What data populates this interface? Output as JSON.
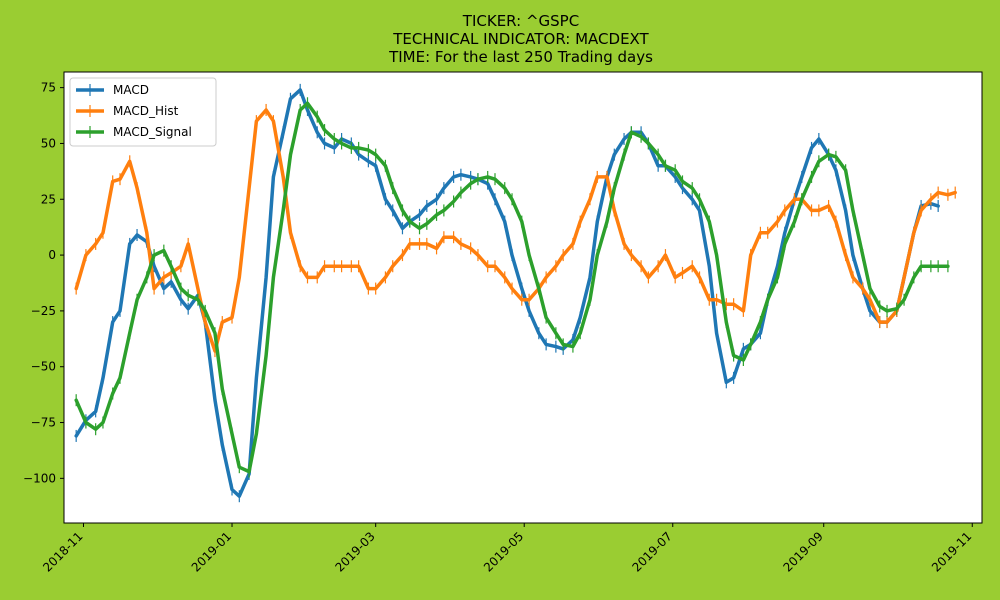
{
  "chart_data": {
    "type": "line",
    "title_lines": [
      "TICKER:  ^GSPC",
      "TECHNICAL INDICATOR:  MACDEXT",
      "TIME: For the last 250 Trading days"
    ],
    "xlabel": "",
    "ylabel": "",
    "xlim": [
      "2018-10-24",
      "2019-11-05"
    ],
    "ylim": [
      -120,
      82
    ],
    "x_ticks": [
      "2018-11-01",
      "2019-01-01",
      "2019-03-01",
      "2019-05-01",
      "2019-07-01",
      "2019-09-01",
      "2019-11-01"
    ],
    "x_tick_labels": [
      "2018-11",
      "2019-01",
      "2019-03",
      "2019-05",
      "2019-07",
      "2019-09",
      "2019-11"
    ],
    "y_ticks": [
      75,
      50,
      25,
      0,
      -25,
      -50,
      -75,
      -100
    ],
    "y_tick_labels": [
      "75",
      "50",
      "25",
      "0",
      "−25",
      "−50",
      "−75",
      "−100"
    ],
    "grid": false,
    "legend_position": "top-left",
    "background": "#9acd32",
    "plot_background": "#ffffff",
    "x_dates": [
      "2018-10-29",
      "2018-11-02",
      "2018-11-06",
      "2018-11-09",
      "2018-11-13",
      "2018-11-16",
      "2018-11-20",
      "2018-11-23",
      "2018-11-27",
      "2018-11-30",
      "2018-12-04",
      "2018-12-07",
      "2018-12-11",
      "2018-12-14",
      "2018-12-18",
      "2018-12-21",
      "2018-12-25",
      "2018-12-28",
      "2019-01-01",
      "2019-01-04",
      "2019-01-08",
      "2019-01-11",
      "2019-01-15",
      "2019-01-18",
      "2019-01-22",
      "2019-01-25",
      "2019-01-29",
      "2019-02-01",
      "2019-02-05",
      "2019-02-08",
      "2019-02-12",
      "2019-02-15",
      "2019-02-19",
      "2019-02-22",
      "2019-02-26",
      "2019-03-01",
      "2019-03-05",
      "2019-03-08",
      "2019-03-12",
      "2019-03-15",
      "2019-03-19",
      "2019-03-22",
      "2019-03-26",
      "2019-03-29",
      "2019-04-02",
      "2019-04-05",
      "2019-04-09",
      "2019-04-12",
      "2019-04-16",
      "2019-04-19",
      "2019-04-23",
      "2019-04-26",
      "2019-04-30",
      "2019-05-03",
      "2019-05-07",
      "2019-05-10",
      "2019-05-14",
      "2019-05-17",
      "2019-05-21",
      "2019-05-24",
      "2019-05-28",
      "2019-05-31",
      "2019-06-04",
      "2019-06-07",
      "2019-06-11",
      "2019-06-14",
      "2019-06-18",
      "2019-06-21",
      "2019-06-25",
      "2019-06-28",
      "2019-07-02",
      "2019-07-05",
      "2019-07-09",
      "2019-07-12",
      "2019-07-16",
      "2019-07-19",
      "2019-07-23",
      "2019-07-26",
      "2019-07-30",
      "2019-08-02",
      "2019-08-06",
      "2019-08-09",
      "2019-08-13",
      "2019-08-16",
      "2019-08-20",
      "2019-08-23",
      "2019-08-27",
      "2019-08-30",
      "2019-09-03",
      "2019-09-06",
      "2019-09-10",
      "2019-09-13",
      "2019-09-17",
      "2019-09-20",
      "2019-09-24",
      "2019-09-27",
      "2019-10-01",
      "2019-10-04",
      "2019-10-08",
      "2019-10-11",
      "2019-10-15",
      "2019-10-18",
      "2019-10-22",
      "2019-10-25"
    ],
    "series": [
      {
        "name": "MACD",
        "color": "#1f77b4",
        "values": [
          -81,
          -74,
          -70,
          -55,
          -30,
          -25,
          5,
          9,
          6,
          -5,
          -15,
          -12,
          -20,
          -24,
          -18,
          -30,
          -65,
          -85,
          -105,
          -108,
          -98,
          -55,
          -10,
          35,
          55,
          70,
          74,
          65,
          55,
          50,
          48,
          52,
          50,
          45,
          42,
          40,
          25,
          20,
          12,
          15,
          18,
          22,
          25,
          30,
          35,
          36,
          35,
          34,
          32,
          25,
          15,
          0,
          -15,
          -25,
          -35,
          -40,
          -41,
          -42,
          -38,
          -28,
          -10,
          15,
          35,
          45,
          52,
          55,
          55,
          50,
          40,
          40,
          35,
          30,
          25,
          20,
          -5,
          -35,
          -57,
          -55,
          -42,
          -40,
          -35,
          -20,
          -5,
          10,
          25,
          35,
          48,
          52,
          45,
          38,
          20,
          0,
          -15,
          -25,
          -30,
          -30,
          -25,
          -10,
          10,
          22,
          23,
          22
        ]
      },
      {
        "name": "MACD_Hist",
        "color": "#ff7f0e",
        "values": [
          -15,
          0,
          5,
          10,
          33,
          34,
          42,
          30,
          10,
          -15,
          -10,
          -8,
          -5,
          5,
          -15,
          -30,
          -43,
          -30,
          -28,
          -10,
          30,
          60,
          65,
          60,
          35,
          10,
          -5,
          -10,
          -10,
          -5,
          -5,
          -5,
          -5,
          -5,
          -15,
          -15,
          -10,
          -5,
          0,
          5,
          5,
          5,
          3,
          8,
          8,
          5,
          3,
          0,
          -5,
          -5,
          -10,
          -15,
          -20,
          -20,
          -15,
          -10,
          -5,
          0,
          5,
          15,
          25,
          35,
          35,
          20,
          5,
          0,
          -5,
          -10,
          -5,
          0,
          -10,
          -8,
          -5,
          -10,
          -20,
          -20,
          -22,
          -22,
          -25,
          0,
          10,
          10,
          15,
          20,
          25,
          25,
          20,
          20,
          22,
          15,
          0,
          -10,
          -15,
          -20,
          -30,
          -30,
          -25,
          -10,
          10,
          20,
          25,
          28,
          27,
          28
        ]
      },
      {
        "name": "MACD_Signal",
        "color": "#2ca02c",
        "values": [
          -65,
          -75,
          -78,
          -75,
          -62,
          -55,
          -35,
          -20,
          -10,
          0,
          2,
          -5,
          -15,
          -18,
          -20,
          -25,
          -35,
          -60,
          -80,
          -95,
          -97,
          -80,
          -45,
          -10,
          20,
          45,
          65,
          68,
          62,
          56,
          52,
          50,
          48,
          48,
          47,
          45,
          40,
          30,
          20,
          15,
          12,
          14,
          18,
          20,
          24,
          28,
          32,
          34,
          35,
          34,
          30,
          25,
          15,
          0,
          -15,
          -28,
          -35,
          -40,
          -41,
          -35,
          -20,
          0,
          15,
          30,
          45,
          55,
          53,
          50,
          45,
          40,
          38,
          33,
          30,
          25,
          15,
          0,
          -30,
          -45,
          -47,
          -40,
          -30,
          -20,
          -10,
          5,
          15,
          25,
          35,
          42,
          45,
          44,
          38,
          20,
          0,
          -15,
          -23,
          -25,
          -24,
          -20,
          -10,
          -5,
          -5,
          -5,
          -5
        ]
      }
    ]
  }
}
